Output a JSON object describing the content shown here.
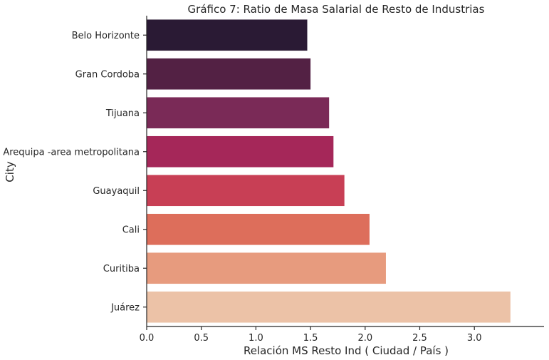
{
  "chart_data": {
    "type": "bar",
    "orientation": "horizontal",
    "title": "Gráfico 7: Ratio de Masa Salarial de Resto de Industrias",
    "xlabel": "Relación MS Resto Ind ( Ciudad / País )",
    "ylabel": "City",
    "categories": [
      "Belo Horizonte",
      "Gran Cordoba",
      "Tijuana",
      "Arequipa -area metropolitana",
      "Guayaquil",
      "Cali",
      "Curitiba",
      "Juárez"
    ],
    "values": [
      1.47,
      1.5,
      1.67,
      1.71,
      1.81,
      2.04,
      2.19,
      3.33
    ],
    "colors": [
      "#2a1a34",
      "#532144",
      "#7a2a57",
      "#a52759",
      "#c83f55",
      "#dd6e5b",
      "#e79b7e",
      "#ecc2a7"
    ],
    "xlim": [
      0,
      3.5
    ],
    "xticks": [
      "0.0",
      "0.5",
      "1.0",
      "1.5",
      "2.0",
      "2.5",
      "3.0"
    ],
    "grid": false,
    "legend": "none"
  }
}
